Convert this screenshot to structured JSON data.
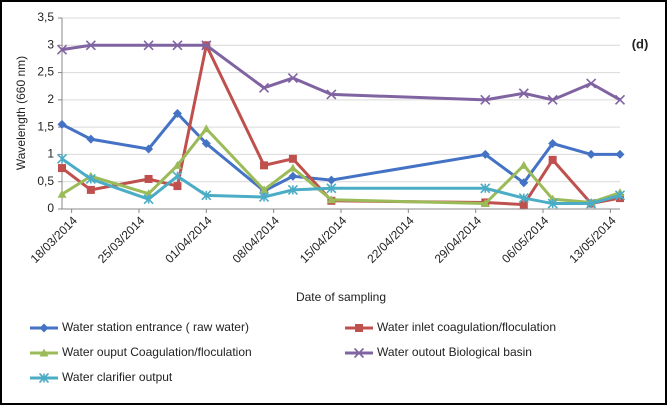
{
  "chart_data": {
    "type": "line",
    "annotation": "(d)",
    "y_label": "Wavelength (660 nm)",
    "x_label": "Date of sampling",
    "x": [
      "2014-03-17",
      "2014-03-20",
      "2014-03-26",
      "2014-03-29",
      "2014-04-01",
      "2014-04-07",
      "2014-04-10",
      "2014-04-14",
      "2014-04-30",
      "2014-05-04",
      "2014-05-07",
      "2014-05-11",
      "2014-05-14"
    ],
    "xlim": [
      "2014-03-17",
      "2014-05-14"
    ],
    "xticks": [
      {
        "value": "2014-03-18",
        "label": "18/03/2014"
      },
      {
        "value": "2014-03-25",
        "label": "25/03/2014"
      },
      {
        "value": "2014-04-01",
        "label": "01/04/2014"
      },
      {
        "value": "2014-04-08",
        "label": "08/04/2014"
      },
      {
        "value": "2014-04-15",
        "label": "15/04/2014"
      },
      {
        "value": "2014-04-22",
        "label": "22/04/2014"
      },
      {
        "value": "2014-04-29",
        "label": "29/04/2014"
      },
      {
        "value": "2014-05-06",
        "label": "06/05/2014"
      },
      {
        "value": "2014-05-13",
        "label": "13/05/2014"
      }
    ],
    "ylim": [
      0,
      3.5
    ],
    "yticks": [
      0,
      {
        "value": 0.5,
        "label": "0,5"
      },
      1,
      {
        "value": 1.5,
        "label": "1,5"
      },
      2,
      {
        "value": 2.5,
        "label": "2,5"
      },
      3,
      {
        "value": 3.5,
        "label": "3,5"
      }
    ],
    "grid": true,
    "series": [
      {
        "name": "Water station entrance ( raw water)",
        "color": "#4472c4",
        "marker": "diamond",
        "values": [
          1.55,
          1.28,
          1.1,
          1.75,
          1.2,
          0.33,
          0.6,
          0.53,
          1.0,
          0.48,
          1.2,
          1.0,
          1.0
        ]
      },
      {
        "name": "Water inlet coagulation/floculation",
        "color": "#c0504d",
        "marker": "square",
        "values": [
          0.75,
          0.35,
          0.55,
          0.42,
          3.0,
          0.8,
          0.92,
          0.15,
          0.12,
          0.08,
          0.9,
          0.1,
          0.2
        ]
      },
      {
        "name": "Water ouput Coagulation/floculation",
        "color": "#9bbb59",
        "marker": "triangle",
        "values": [
          0.27,
          0.6,
          0.28,
          0.8,
          1.47,
          0.35,
          0.75,
          0.17,
          0.1,
          0.8,
          0.18,
          0.12,
          0.3
        ]
      },
      {
        "name": "Water outout Biological basin",
        "color": "#8064a2",
        "marker": "cross",
        "values": [
          2.92,
          3.0,
          3.0,
          3.0,
          3.0,
          2.22,
          2.4,
          2.1,
          2.0,
          2.12,
          2.0,
          2.3,
          2.0
        ]
      },
      {
        "name": "Water clarifier output",
        "color": "#4bacc6",
        "marker": "star",
        "values": [
          0.92,
          0.55,
          0.18,
          0.6,
          0.25,
          0.22,
          0.35,
          0.38,
          0.38,
          0.2,
          0.1,
          0.1,
          0.25
        ]
      }
    ]
  }
}
